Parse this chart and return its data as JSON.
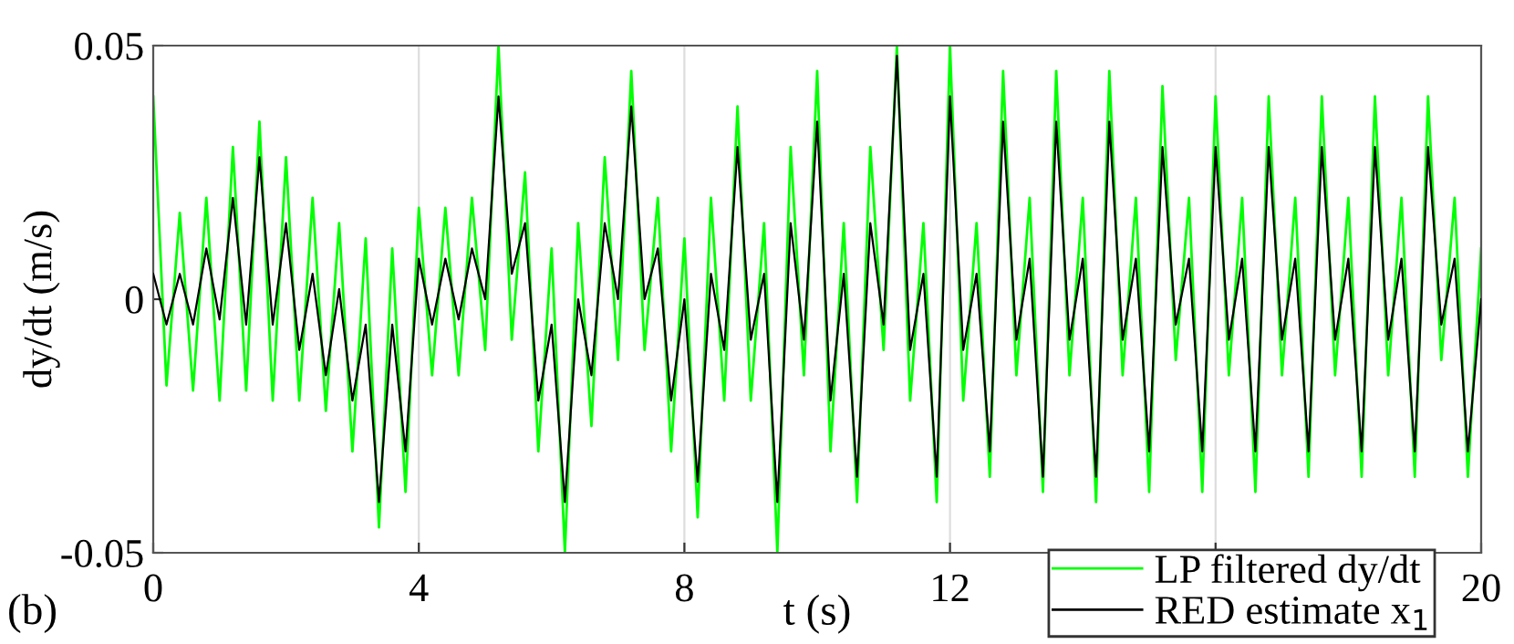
{
  "chart_data": {
    "type": "line",
    "xlabel": "t (s)",
    "ylabel": "dy/dt (m/s)",
    "annotations": [
      "(b)"
    ],
    "xlim": [
      0,
      20
    ],
    "ylim": [
      -0.05,
      0.05
    ],
    "xticks": [
      0,
      4,
      8,
      12,
      {
        "value": 16,
        "label": null
      },
      20
    ],
    "yticks": [
      {
        "value": -0.05,
        "label": "-0.05"
      },
      0,
      0.05
    ],
    "grid": "x",
    "legend": "bottom right",
    "line_style": "solid",
    "x": [
      0,
      0.2,
      0.4,
      0.6,
      0.8,
      1.0,
      1.2,
      1.4,
      1.6,
      1.8,
      2.0,
      2.2,
      2.4,
      2.6,
      2.8,
      3.0,
      3.2,
      3.4,
      3.6,
      3.8,
      4.0,
      4.2,
      4.4,
      4.6,
      4.8,
      5.0,
      5.2,
      5.4,
      5.6,
      5.8,
      6.0,
      6.2,
      6.4,
      6.6,
      6.8,
      7.0,
      7.2,
      7.4,
      7.6,
      7.8,
      8.0,
      8.2,
      8.4,
      8.6,
      8.8,
      9.0,
      9.2,
      9.4,
      9.6,
      9.8,
      10.0,
      10.2,
      10.4,
      10.6,
      10.8,
      11.0,
      11.2,
      11.4,
      11.6,
      11.8,
      12.0,
      12.2,
      12.4,
      12.6,
      12.8,
      13.0,
      13.2,
      13.4,
      13.6,
      13.8,
      14.0,
      14.2,
      14.4,
      14.6,
      14.8,
      15.0,
      15.2,
      15.4,
      15.6,
      15.8,
      16.0,
      16.2,
      16.4,
      16.6,
      16.8,
      17.0,
      17.2,
      17.4,
      17.6,
      17.8,
      18.0,
      18.2,
      18.4,
      18.6,
      18.8,
      19.0,
      19.2,
      19.4,
      19.6,
      19.8,
      20.0
    ],
    "series": [
      {
        "name": "LP filtered dy/dt",
        "color": "#00ff00",
        "values": [
          0.04,
          -0.017,
          0.017,
          -0.018,
          0.02,
          -0.02,
          0.03,
          -0.018,
          0.035,
          -0.02,
          0.028,
          -0.02,
          0.02,
          -0.022,
          0.015,
          -0.03,
          0.012,
          -0.045,
          0.01,
          -0.038,
          0.018,
          -0.015,
          0.018,
          -0.015,
          0.02,
          -0.01,
          0.05,
          -0.008,
          0.025,
          -0.03,
          0.01,
          -0.05,
          0.015,
          -0.025,
          0.028,
          -0.012,
          0.045,
          -0.01,
          0.02,
          -0.03,
          0.012,
          -0.043,
          0.02,
          -0.02,
          0.038,
          -0.02,
          0.015,
          -0.05,
          0.03,
          -0.015,
          0.045,
          -0.03,
          0.015,
          -0.04,
          0.03,
          -0.01,
          0.05,
          -0.02,
          0.015,
          -0.04,
          0.05,
          -0.02,
          0.015,
          -0.035,
          0.045,
          -0.015,
          0.02,
          -0.038,
          0.045,
          -0.015,
          0.02,
          -0.04,
          0.045,
          -0.015,
          0.02,
          -0.038,
          0.042,
          -0.012,
          0.02,
          -0.038,
          0.04,
          -0.015,
          0.02,
          -0.038,
          0.04,
          -0.015,
          0.02,
          -0.035,
          0.04,
          -0.015,
          0.02,
          -0.035,
          0.04,
          -0.015,
          0.02,
          -0.035,
          0.04,
          -0.012,
          0.02,
          -0.035,
          0.01
        ]
      },
      {
        "name": "RED estimate x$_{1}$",
        "color": "#000000",
        "values": [
          0.005,
          -0.005,
          0.005,
          -0.005,
          0.01,
          -0.004,
          0.02,
          -0.005,
          0.028,
          -0.005,
          0.015,
          -0.01,
          0.005,
          -0.015,
          0.002,
          -0.02,
          -0.005,
          -0.04,
          -0.005,
          -0.03,
          0.008,
          -0.005,
          0.008,
          -0.004,
          0.01,
          0.0,
          0.04,
          0.005,
          0.015,
          -0.02,
          -0.005,
          -0.04,
          0.0,
          -0.015,
          0.015,
          0.0,
          0.038,
          0.0,
          0.01,
          -0.02,
          0.0,
          -0.036,
          0.005,
          -0.01,
          0.03,
          -0.008,
          0.005,
          -0.04,
          0.015,
          -0.008,
          0.035,
          -0.02,
          0.005,
          -0.035,
          0.015,
          -0.005,
          0.048,
          -0.01,
          0.005,
          -0.035,
          0.04,
          -0.01,
          0.005,
          -0.03,
          0.035,
          -0.008,
          0.008,
          -0.035,
          0.035,
          -0.008,
          0.008,
          -0.035,
          0.035,
          -0.008,
          0.008,
          -0.03,
          0.03,
          -0.005,
          0.008,
          -0.03,
          0.03,
          -0.008,
          0.008,
          -0.03,
          0.03,
          -0.008,
          0.008,
          -0.03,
          0.03,
          -0.008,
          0.008,
          -0.03,
          0.03,
          -0.008,
          0.008,
          -0.03,
          0.03,
          -0.005,
          0.008,
          -0.03,
          0.0
        ]
      }
    ]
  }
}
